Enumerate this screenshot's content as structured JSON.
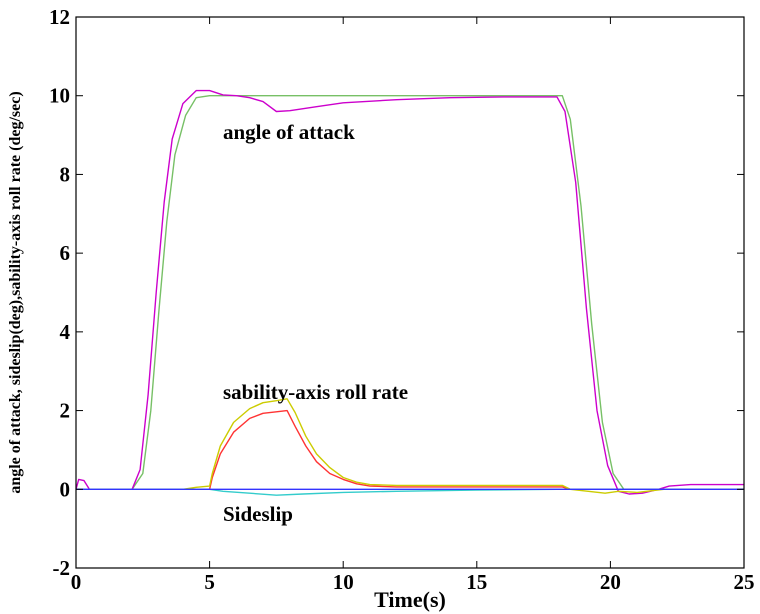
{
  "chart_data": {
    "type": "line",
    "title": "",
    "xlabel": "Time(s)",
    "ylabel": "angle of attack, sideslip(deg),sability-axis roll rate (deg/sec)",
    "xlim": [
      0,
      25
    ],
    "ylim": [
      -2,
      12
    ],
    "x_ticks": [
      "0",
      "5",
      "10",
      "15",
      "20",
      "25"
    ],
    "y_ticks": [
      "-2",
      "0",
      "2",
      "4",
      "6",
      "8",
      "10",
      "12"
    ],
    "grid": false,
    "annotations": [
      {
        "text": "angle of attack",
        "x": 5.5,
        "y": 8.9
      },
      {
        "text": "sability-axis roll rate",
        "x": 5.5,
        "y": 2.3
      },
      {
        "text": "Sideslip",
        "x": 5.5,
        "y": -0.8
      }
    ],
    "series": [
      {
        "color": "#77c066",
        "points": [
          [
            0,
            0
          ],
          [
            2.1,
            0
          ],
          [
            2.5,
            0.4
          ],
          [
            2.8,
            2.0
          ],
          [
            3.1,
            4.5
          ],
          [
            3.4,
            6.8
          ],
          [
            3.7,
            8.5
          ],
          [
            4.1,
            9.5
          ],
          [
            4.5,
            9.95
          ],
          [
            5,
            10
          ],
          [
            18.2,
            10
          ],
          [
            18.5,
            9.4
          ],
          [
            18.9,
            7.2
          ],
          [
            19.3,
            4.2
          ],
          [
            19.7,
            1.7
          ],
          [
            20.1,
            0.4
          ],
          [
            20.5,
            0
          ],
          [
            25,
            0
          ]
        ]
      },
      {
        "color": "#cc00cc",
        "points": [
          [
            0,
            0
          ],
          [
            0.1,
            0.25
          ],
          [
            0.3,
            0.22
          ],
          [
            0.5,
            0
          ],
          [
            2.1,
            0
          ],
          [
            2.4,
            0.5
          ],
          [
            2.7,
            2.4
          ],
          [
            3.0,
            5.0
          ],
          [
            3.3,
            7.3
          ],
          [
            3.6,
            8.9
          ],
          [
            4.0,
            9.8
          ],
          [
            4.5,
            10.13
          ],
          [
            5.0,
            10.13
          ],
          [
            5.5,
            10.02
          ],
          [
            6.0,
            10.0
          ],
          [
            6.5,
            9.95
          ],
          [
            7.0,
            9.85
          ],
          [
            7.5,
            9.6
          ],
          [
            8.0,
            9.62
          ],
          [
            9.0,
            9.72
          ],
          [
            10.0,
            9.82
          ],
          [
            12.0,
            9.9
          ],
          [
            14.0,
            9.95
          ],
          [
            16.0,
            9.97
          ],
          [
            18.0,
            9.97
          ],
          [
            18.3,
            9.6
          ],
          [
            18.7,
            7.8
          ],
          [
            19.1,
            4.6
          ],
          [
            19.5,
            2.0
          ],
          [
            19.9,
            0.6
          ],
          [
            20.3,
            -0.05
          ],
          [
            20.7,
            -0.12
          ],
          [
            21.2,
            -0.1
          ],
          [
            21.8,
            0
          ],
          [
            22.2,
            0.08
          ],
          [
            23.0,
            0.12
          ],
          [
            25,
            0.12
          ]
        ]
      },
      {
        "color": "#ff3333",
        "points": [
          [
            0,
            0
          ],
          [
            5.0,
            0
          ],
          [
            5.1,
            0.3
          ],
          [
            5.4,
            0.9
          ],
          [
            5.9,
            1.45
          ],
          [
            6.5,
            1.8
          ],
          [
            7.0,
            1.93
          ],
          [
            7.5,
            1.97
          ],
          [
            7.9,
            2.0
          ],
          [
            8.2,
            1.6
          ],
          [
            8.6,
            1.1
          ],
          [
            9.0,
            0.7
          ],
          [
            9.5,
            0.4
          ],
          [
            10.0,
            0.25
          ],
          [
            10.5,
            0.14
          ],
          [
            11.0,
            0.08
          ],
          [
            12.0,
            0.06
          ],
          [
            18.2,
            0.06
          ],
          [
            18.5,
            0
          ],
          [
            25,
            0
          ]
        ]
      },
      {
        "color": "#cccc00",
        "points": [
          [
            0,
            0
          ],
          [
            4.0,
            0
          ],
          [
            4.5,
            0.05
          ],
          [
            5.0,
            0.08
          ],
          [
            5.1,
            0.4
          ],
          [
            5.4,
            1.1
          ],
          [
            5.9,
            1.7
          ],
          [
            6.5,
            2.05
          ],
          [
            7.0,
            2.2
          ],
          [
            7.5,
            2.25
          ],
          [
            7.9,
            2.3
          ],
          [
            8.2,
            1.95
          ],
          [
            8.6,
            1.35
          ],
          [
            9.0,
            0.9
          ],
          [
            9.5,
            0.55
          ],
          [
            10.0,
            0.3
          ],
          [
            10.5,
            0.18
          ],
          [
            11.0,
            0.12
          ],
          [
            12.0,
            0.1
          ],
          [
            18.2,
            0.1
          ],
          [
            18.5,
            0
          ],
          [
            19.8,
            -0.1
          ],
          [
            20.3,
            -0.05
          ],
          [
            21.0,
            -0.08
          ],
          [
            22.0,
            0
          ],
          [
            25,
            0
          ]
        ]
      },
      {
        "color": "#33cccc",
        "points": [
          [
            0,
            0
          ],
          [
            5.0,
            0
          ],
          [
            5.5,
            -0.05
          ],
          [
            6.5,
            -0.1
          ],
          [
            7.5,
            -0.15
          ],
          [
            8.5,
            -0.12
          ],
          [
            10,
            -0.08
          ],
          [
            12,
            -0.05
          ],
          [
            15,
            -0.02
          ],
          [
            18,
            0
          ],
          [
            25,
            0
          ]
        ]
      },
      {
        "color": "#3333ff",
        "points": [
          [
            0,
            0
          ],
          [
            25,
            0
          ]
        ]
      }
    ]
  }
}
